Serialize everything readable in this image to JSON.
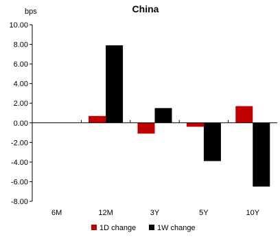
{
  "chart_data": {
    "type": "bar",
    "title": "China",
    "ylabel": "bps",
    "xlabel": "",
    "categories": [
      "6M",
      "12M",
      "3Y",
      "5Y",
      "10Y"
    ],
    "series": [
      {
        "name": "1D change",
        "color": "#c00000",
        "values": [
          0.0,
          0.7,
          -1.1,
          -0.4,
          1.7
        ]
      },
      {
        "name": "1W change",
        "color": "#000000",
        "values": [
          0.0,
          7.9,
          1.5,
          -3.9,
          -6.5
        ]
      }
    ],
    "ylim": [
      -8,
      10
    ],
    "yticks": [
      10,
      8,
      6,
      4,
      2,
      0,
      -2,
      -4,
      -6,
      -8
    ],
    "ytick_labels": [
      "10.00",
      "8.00",
      "6.00",
      "4.00",
      "2.00",
      "0.00",
      "-2.00",
      "-4.00",
      "-6.00",
      "-8.00"
    ],
    "grid": false,
    "legend_position": "bottom"
  }
}
